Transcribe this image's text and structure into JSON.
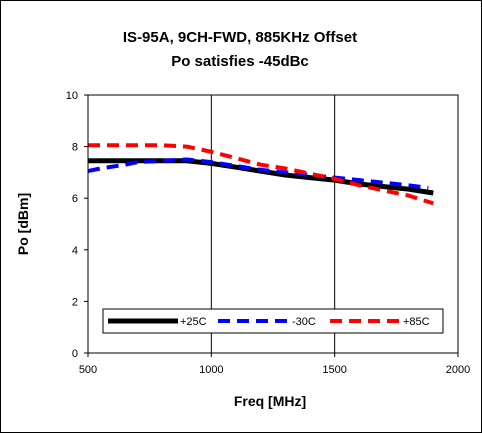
{
  "chart_data": {
    "type": "line",
    "title": "IS-95A, 9CH-FWD, 885KHz Offset",
    "subtitle": "Po satisfies -45dBc",
    "xlabel": "Freq [MHz]",
    "ylabel": "Po [dBm]",
    "xlim": [
      500,
      2000
    ],
    "ylim": [
      0,
      10
    ],
    "x_ticks": [
      "500",
      "1000",
      "1500",
      "2000"
    ],
    "y_ticks": [
      "0",
      "2",
      "4",
      "6",
      "8",
      "10"
    ],
    "grid": "vertical",
    "legend_position": "bottom-inside",
    "series": [
      {
        "name": "+25C",
        "color": "#000000",
        "style": "solid",
        "points": [
          [
            500,
            7.45
          ],
          [
            600,
            7.45
          ],
          [
            700,
            7.45
          ],
          [
            800,
            7.45
          ],
          [
            900,
            7.45
          ],
          [
            1000,
            7.35
          ],
          [
            1100,
            7.2
          ],
          [
            1200,
            7.05
          ],
          [
            1300,
            6.9
          ],
          [
            1400,
            6.8
          ],
          [
            1500,
            6.7
          ],
          [
            1600,
            6.55
          ],
          [
            1700,
            6.45
          ],
          [
            1800,
            6.35
          ],
          [
            1900,
            6.2
          ]
        ]
      },
      {
        "name": "-30C",
        "color": "#0000ff",
        "style": "dash",
        "points": [
          [
            500,
            7.05
          ],
          [
            550,
            7.15
          ],
          [
            650,
            7.3
          ],
          [
            700,
            7.4
          ],
          [
            800,
            7.45
          ],
          [
            900,
            7.5
          ],
          [
            1000,
            7.4
          ],
          [
            1100,
            7.25
          ],
          [
            1200,
            7.1
          ],
          [
            1300,
            7.0
          ],
          [
            1400,
            6.9
          ],
          [
            1500,
            6.8
          ],
          [
            1600,
            6.7
          ],
          [
            1700,
            6.6
          ],
          [
            1800,
            6.5
          ],
          [
            1880,
            6.4
          ]
        ]
      },
      {
        "name": "+85C",
        "color": "#ff0000",
        "style": "dash",
        "points": [
          [
            500,
            8.05
          ],
          [
            600,
            8.05
          ],
          [
            700,
            8.05
          ],
          [
            800,
            8.05
          ],
          [
            900,
            8.0
          ],
          [
            1000,
            7.8
          ],
          [
            1100,
            7.55
          ],
          [
            1200,
            7.3
          ],
          [
            1300,
            7.15
          ],
          [
            1400,
            6.95
          ],
          [
            1500,
            6.75
          ],
          [
            1600,
            6.5
          ],
          [
            1700,
            6.3
          ],
          [
            1800,
            6.1
          ],
          [
            1900,
            5.8
          ]
        ]
      }
    ]
  }
}
